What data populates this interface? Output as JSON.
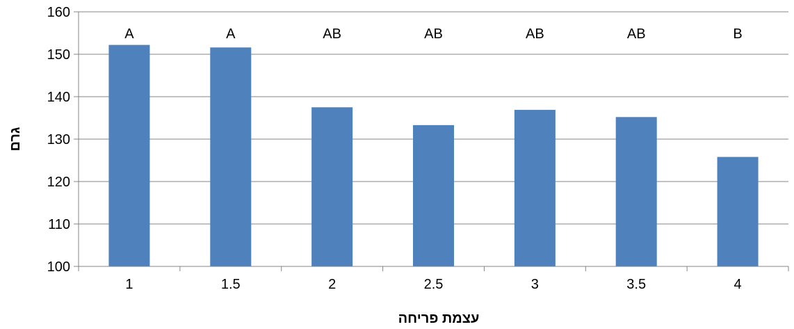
{
  "chart_data": {
    "type": "bar",
    "title": "",
    "xlabel": "עצמת פריחה",
    "ylabel": "גרם",
    "categories": [
      "1",
      "1.5",
      "2",
      "2.5",
      "3",
      "3.5",
      "4"
    ],
    "series": [
      {
        "values": [
          152.2,
          151.6,
          137.5,
          133.3,
          136.9,
          135.2,
          125.8
        ],
        "color": "#4F81BD"
      }
    ],
    "annotations": [
      "A",
      "A",
      "AB",
      "AB",
      "AB",
      "AB",
      "B"
    ],
    "ylim": [
      100,
      160
    ],
    "yticks": [
      100,
      110,
      120,
      130,
      140,
      150,
      160
    ],
    "grid": true,
    "gridlines_color": "#868686",
    "legend": "none"
  }
}
